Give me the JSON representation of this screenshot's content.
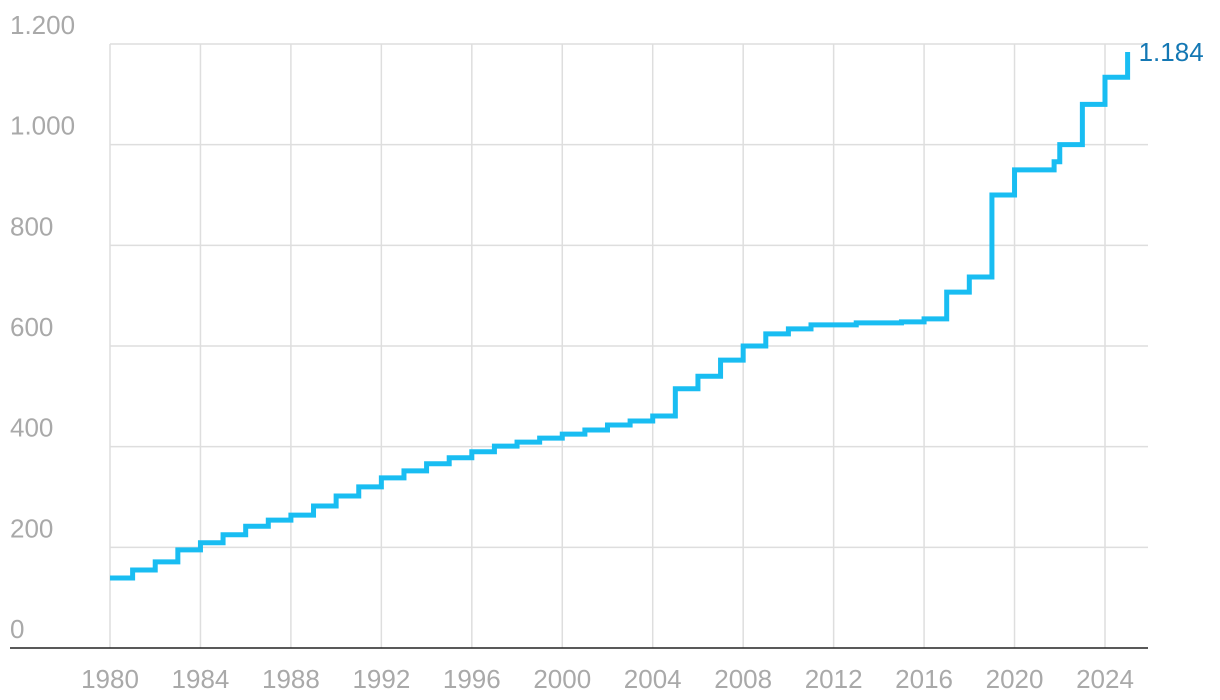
{
  "chart_data": {
    "type": "step",
    "x": [
      1980,
      1981,
      1982,
      1983,
      1984,
      1985,
      1986,
      1987,
      1988,
      1989,
      1990,
      1991,
      1992,
      1993,
      1994,
      1995,
      1996,
      1997,
      1998,
      1999,
      2000,
      2001,
      2002,
      2003,
      2004,
      2005,
      2006,
      2007,
      2008,
      2009,
      2010,
      2011,
      2012,
      2013,
      2014,
      2015,
      2016,
      2017,
      2018,
      2019,
      2020,
      2021,
      2021.75,
      2022,
      2023,
      2024,
      2025
    ],
    "values": [
      139,
      155,
      171,
      195,
      209,
      225,
      242,
      254,
      264,
      282,
      302,
      320,
      338,
      352,
      366,
      378,
      390,
      401,
      409,
      417,
      425,
      433,
      443,
      451,
      461,
      515,
      540,
      572,
      600,
      624,
      634,
      642,
      642,
      646,
      646,
      648,
      654,
      707,
      737,
      900,
      950,
      950,
      966,
      1000,
      1080,
      1134,
      1184
    ],
    "value_labels": [
      null,
      null,
      null,
      null,
      null,
      null,
      null,
      null,
      null,
      null,
      null,
      null,
      null,
      null,
      null,
      null,
      null,
      null,
      null,
      null,
      null,
      null,
      null,
      null,
      null,
      null,
      null,
      null,
      null,
      null,
      null,
      null,
      null,
      null,
      null,
      null,
      null,
      null,
      null,
      null,
      null,
      null,
      null,
      null,
      null,
      null,
      "1.184"
    ],
    "color": "#19bdf2",
    "label_color": "#1478b4",
    "xlim": [
      1980,
      2025
    ],
    "xticks": [
      1980,
      1984,
      1988,
      1992,
      1996,
      2000,
      2004,
      2008,
      2012,
      2016,
      2020,
      2024
    ],
    "ylim": [
      0,
      1200
    ],
    "yticks": [
      0,
      200,
      400,
      600,
      800,
      {
        "value": 1000,
        "label": "1.000"
      },
      {
        "value": 1200,
        "label": "1.200"
      }
    ],
    "grid": true
  }
}
